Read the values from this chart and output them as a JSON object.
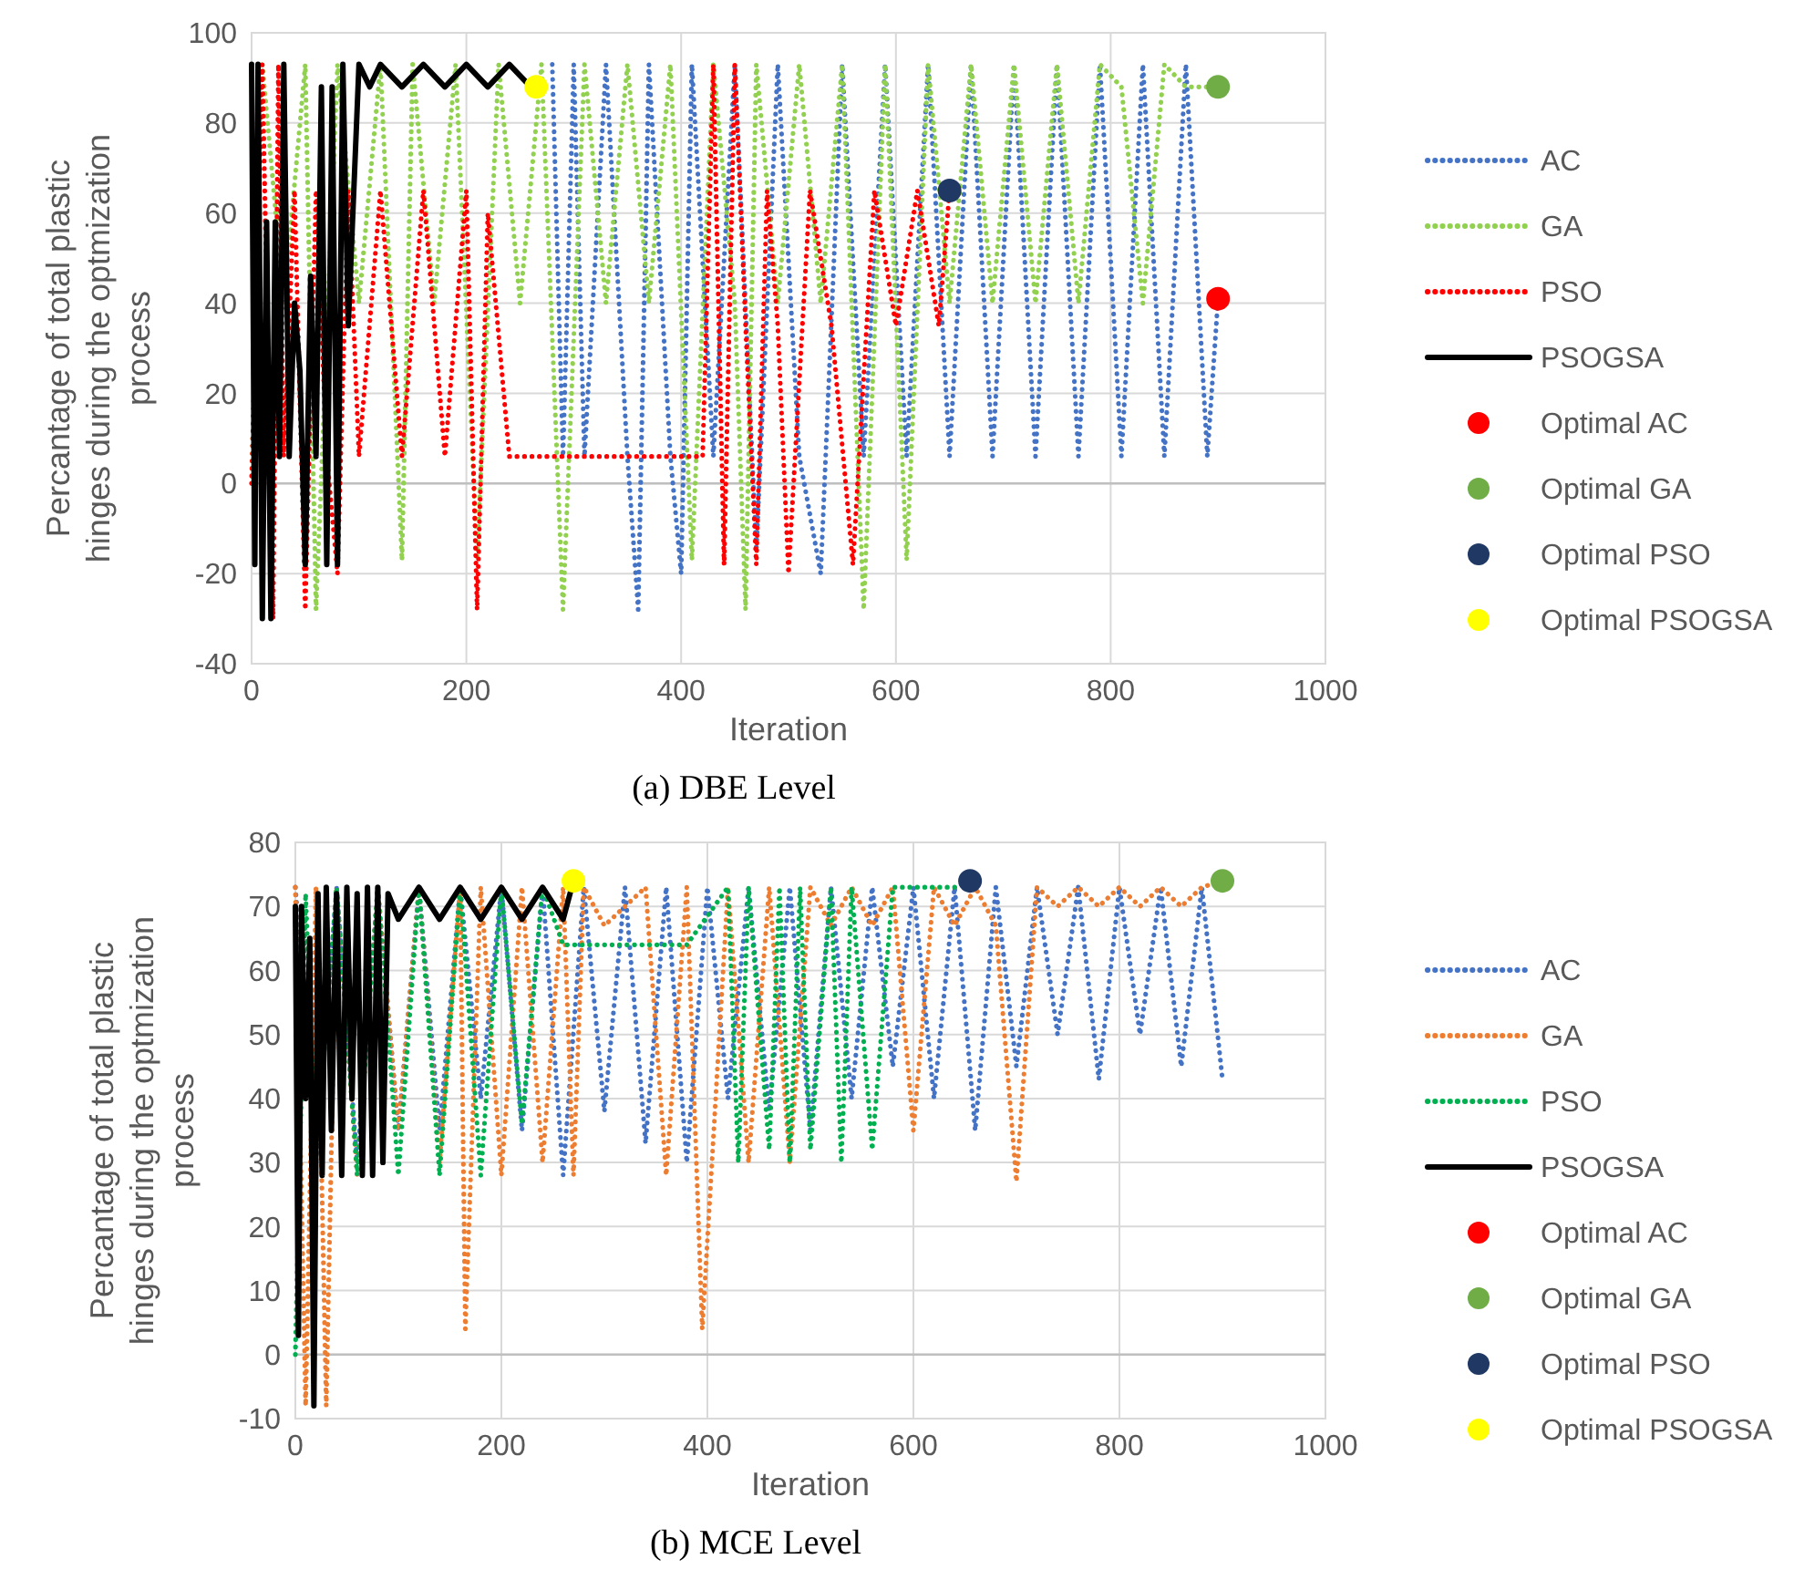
{
  "chart_data": [
    {
      "type": "line",
      "title": "(a) DBE Level",
      "xlabel": "Iteration",
      "ylabel": "Percantage of total plastic hinges during the optmization process",
      "xlim": [
        0,
        1000
      ],
      "xticks": [
        0,
        200,
        400,
        600,
        800,
        1000
      ],
      "ylim": [
        -40,
        100
      ],
      "yticks": [
        -40,
        -20,
        0,
        20,
        40,
        60,
        80,
        100
      ],
      "grid": true,
      "legend": "right",
      "series": [
        {
          "name": "AC",
          "color": "#4472c4",
          "line_style": "dotted",
          "marker": "none",
          "x": [
            280,
            290,
            300,
            310,
            330,
            350,
            360,
            370,
            390,
            400,
            410,
            430,
            450,
            470,
            490,
            510,
            530,
            550,
            570,
            590,
            610,
            630,
            650,
            670,
            690,
            710,
            730,
            750,
            770,
            790,
            810,
            830,
            850,
            870,
            890,
            900
          ],
          "values": [
            93,
            6,
            93,
            6,
            93,
            6,
            -28,
            93,
            6,
            -20,
            93,
            6,
            93,
            -15,
            93,
            6,
            -20,
            93,
            6,
            93,
            6,
            93,
            6,
            93,
            6,
            93,
            6,
            93,
            6,
            93,
            6,
            93,
            6,
            93,
            6,
            41
          ]
        },
        {
          "name": "GA",
          "color": "#92d050",
          "line_style": "dotted",
          "marker": "none",
          "x": [
            0,
            10,
            30,
            50,
            60,
            80,
            100,
            120,
            140,
            150,
            170,
            190,
            210,
            230,
            250,
            270,
            290,
            310,
            330,
            350,
            370,
            390,
            410,
            430,
            450,
            460,
            470,
            490,
            510,
            530,
            550,
            570,
            590,
            610,
            630,
            650,
            670,
            690,
            710,
            730,
            750,
            770,
            790,
            810,
            830,
            850,
            870,
            890,
            900
          ],
          "values": [
            0,
            93,
            40,
            93,
            -28,
            93,
            40,
            93,
            -17,
            93,
            40,
            93,
            -17,
            93,
            40,
            93,
            -28,
            93,
            40,
            93,
            40,
            93,
            -17,
            93,
            40,
            -28,
            93,
            40,
            93,
            40,
            93,
            -28,
            93,
            -17,
            93,
            40,
            93,
            40,
            93,
            40,
            93,
            40,
            93,
            88,
            40,
            93,
            88,
            88,
            88
          ]
        },
        {
          "name": "PSO",
          "color": "#ff0000",
          "line_style": "dotted",
          "marker": "none",
          "x": [
            0,
            10,
            20,
            25,
            30,
            40,
            50,
            60,
            70,
            80,
            90,
            100,
            120,
            140,
            160,
            180,
            200,
            210,
            220,
            240,
            260,
            280,
            300,
            340,
            380,
            420,
            430,
            440,
            450,
            460,
            470,
            480,
            490,
            500,
            520,
            540,
            560,
            580,
            600,
            620,
            640,
            650
          ],
          "values": [
            0,
            93,
            -30,
            93,
            6,
            65,
            -28,
            65,
            6,
            -20,
            65,
            6,
            65,
            6,
            65,
            6,
            65,
            -28,
            60,
            6,
            6,
            6,
            6,
            6,
            6,
            6,
            93,
            -18,
            93,
            35,
            -18,
            65,
            35,
            -20,
            65,
            35,
            -18,
            65,
            35,
            65,
            35,
            65
          ]
        },
        {
          "name": "PSOGSA",
          "color": "#000000",
          "line_style": "solid",
          "marker": "none",
          "x": [
            0,
            3,
            6,
            10,
            14,
            18,
            22,
            26,
            30,
            35,
            40,
            45,
            50,
            55,
            60,
            65,
            70,
            75,
            80,
            85,
            90,
            100,
            110,
            120,
            140,
            160,
            180,
            200,
            220,
            240,
            260,
            265
          ],
          "values": [
            93,
            -18,
            93,
            -30,
            58,
            -30,
            58,
            6,
            93,
            6,
            40,
            25,
            -18,
            46,
            6,
            88,
            -18,
            88,
            -18,
            93,
            35,
            93,
            88,
            93,
            88,
            93,
            88,
            93,
            88,
            93,
            88,
            88
          ]
        },
        {
          "name": "Optimal AC",
          "type": "scatter",
          "color": "#ff0000",
          "marker": "circle",
          "x": [
            900
          ],
          "values": [
            41
          ]
        },
        {
          "name": "Optimal GA",
          "type": "scatter",
          "color": "#70ad47",
          "marker": "circle",
          "x": [
            900
          ],
          "values": [
            88
          ]
        },
        {
          "name": "Optimal PSO",
          "type": "scatter",
          "color": "#203864",
          "marker": "circle",
          "x": [
            650
          ],
          "values": [
            65
          ]
        },
        {
          "name": "Optimal PSOGSA",
          "type": "scatter",
          "color": "#ffff00",
          "marker": "circle",
          "x": [
            265
          ],
          "values": [
            88
          ]
        }
      ]
    },
    {
      "type": "line",
      "title": "(b) MCE Level",
      "xlabel": "Iteration",
      "ylabel": "Percantage of total plastic hinges during the optmization process",
      "xlim": [
        0,
        1000
      ],
      "xticks": [
        0,
        200,
        400,
        600,
        800,
        1000
      ],
      "ylim": [
        -10,
        80
      ],
      "yticks": [
        -10,
        0,
        10,
        20,
        30,
        40,
        50,
        60,
        70,
        80
      ],
      "grid": true,
      "legend": "right",
      "series": [
        {
          "name": "AC",
          "color": "#4472c4",
          "line_style": "dotted",
          "marker": "none",
          "x": [
            0,
            20,
            40,
            60,
            80,
            100,
            120,
            140,
            160,
            180,
            200,
            220,
            240,
            260,
            280,
            300,
            320,
            340,
            360,
            380,
            400,
            420,
            440,
            460,
            480,
            500,
            520,
            540,
            560,
            580,
            600,
            620,
            640,
            660,
            680,
            700,
            720,
            740,
            760,
            780,
            800,
            820,
            840,
            860,
            880,
            900
          ],
          "values": [
            73,
            30,
            73,
            30,
            73,
            35,
            73,
            35,
            73,
            40,
            73,
            35,
            73,
            28,
            73,
            38,
            73,
            33,
            73,
            30,
            73,
            40,
            73,
            38,
            73,
            35,
            73,
            40,
            73,
            45,
            73,
            40,
            73,
            35,
            73,
            45,
            73,
            50,
            73,
            43,
            73,
            50,
            73,
            45,
            73,
            43
          ]
        },
        {
          "name": "GA",
          "color": "#ed7d31",
          "line_style": "dotted",
          "marker": "none",
          "x": [
            0,
            10,
            20,
            30,
            40,
            60,
            80,
            100,
            120,
            140,
            160,
            165,
            180,
            200,
            220,
            240,
            260,
            270,
            280,
            300,
            340,
            360,
            380,
            395,
            420,
            440,
            460,
            480,
            500,
            520,
            540,
            560,
            580,
            600,
            620,
            640,
            660,
            680,
            700,
            720,
            740,
            760,
            780,
            800,
            820,
            840,
            860,
            880,
            900
          ],
          "values": [
            73,
            -8,
            73,
            -8,
            73,
            28,
            73,
            35,
            73,
            30,
            73,
            4,
            73,
            28,
            73,
            30,
            73,
            28,
            73,
            67,
            73,
            28,
            73,
            4,
            73,
            30,
            73,
            30,
            73,
            67,
            73,
            67,
            73,
            35,
            73,
            67,
            73,
            67,
            27,
            73,
            70,
            73,
            70,
            73,
            70,
            73,
            70,
            73,
            74
          ]
        },
        {
          "name": "PSO",
          "color": "#00b050",
          "line_style": "dotted",
          "marker": "none",
          "x": [
            0,
            10,
            20,
            40,
            60,
            80,
            100,
            120,
            140,
            160,
            180,
            200,
            220,
            240,
            260,
            300,
            340,
            380,
            420,
            430,
            440,
            460,
            470,
            480,
            490,
            500,
            520,
            530,
            540,
            560,
            580,
            600,
            620,
            640,
            655
          ],
          "values": [
            0,
            72,
            30,
            73,
            28,
            73,
            28,
            73,
            28,
            73,
            28,
            73,
            36,
            73,
            64,
            64,
            64,
            64,
            73,
            30,
            73,
            32,
            73,
            30,
            73,
            32,
            73,
            30,
            73,
            32,
            73,
            73,
            73,
            73,
            74
          ]
        },
        {
          "name": "PSOGSA",
          "color": "#000000",
          "line_style": "solid",
          "marker": "none",
          "x": [
            0,
            3,
            6,
            10,
            14,
            18,
            22,
            26,
            30,
            35,
            40,
            45,
            50,
            55,
            60,
            65,
            70,
            75,
            80,
            85,
            90,
            100,
            120,
            140,
            160,
            180,
            200,
            220,
            240,
            260,
            270
          ],
          "values": [
            70,
            3,
            70,
            40,
            65,
            -8,
            72,
            28,
            73,
            35,
            72,
            28,
            73,
            40,
            72,
            28,
            73,
            28,
            73,
            30,
            72,
            68,
            73,
            68,
            73,
            68,
            73,
            68,
            73,
            68,
            74
          ]
        },
        {
          "name": "Optimal AC",
          "type": "scatter",
          "color": "#ff0000",
          "marker": "circle"
        },
        {
          "name": "Optimal GA",
          "type": "scatter",
          "color": "#70ad47",
          "marker": "circle",
          "x": [
            900
          ],
          "values": [
            74
          ]
        },
        {
          "name": "Optimal PSO",
          "type": "scatter",
          "color": "#203864",
          "marker": "circle",
          "x": [
            655
          ],
          "values": [
            74
          ]
        },
        {
          "name": "Optimal PSOGSA",
          "type": "scatter",
          "color": "#ffff00",
          "marker": "circle",
          "x": [
            270
          ],
          "values": [
            74
          ]
        }
      ]
    }
  ]
}
